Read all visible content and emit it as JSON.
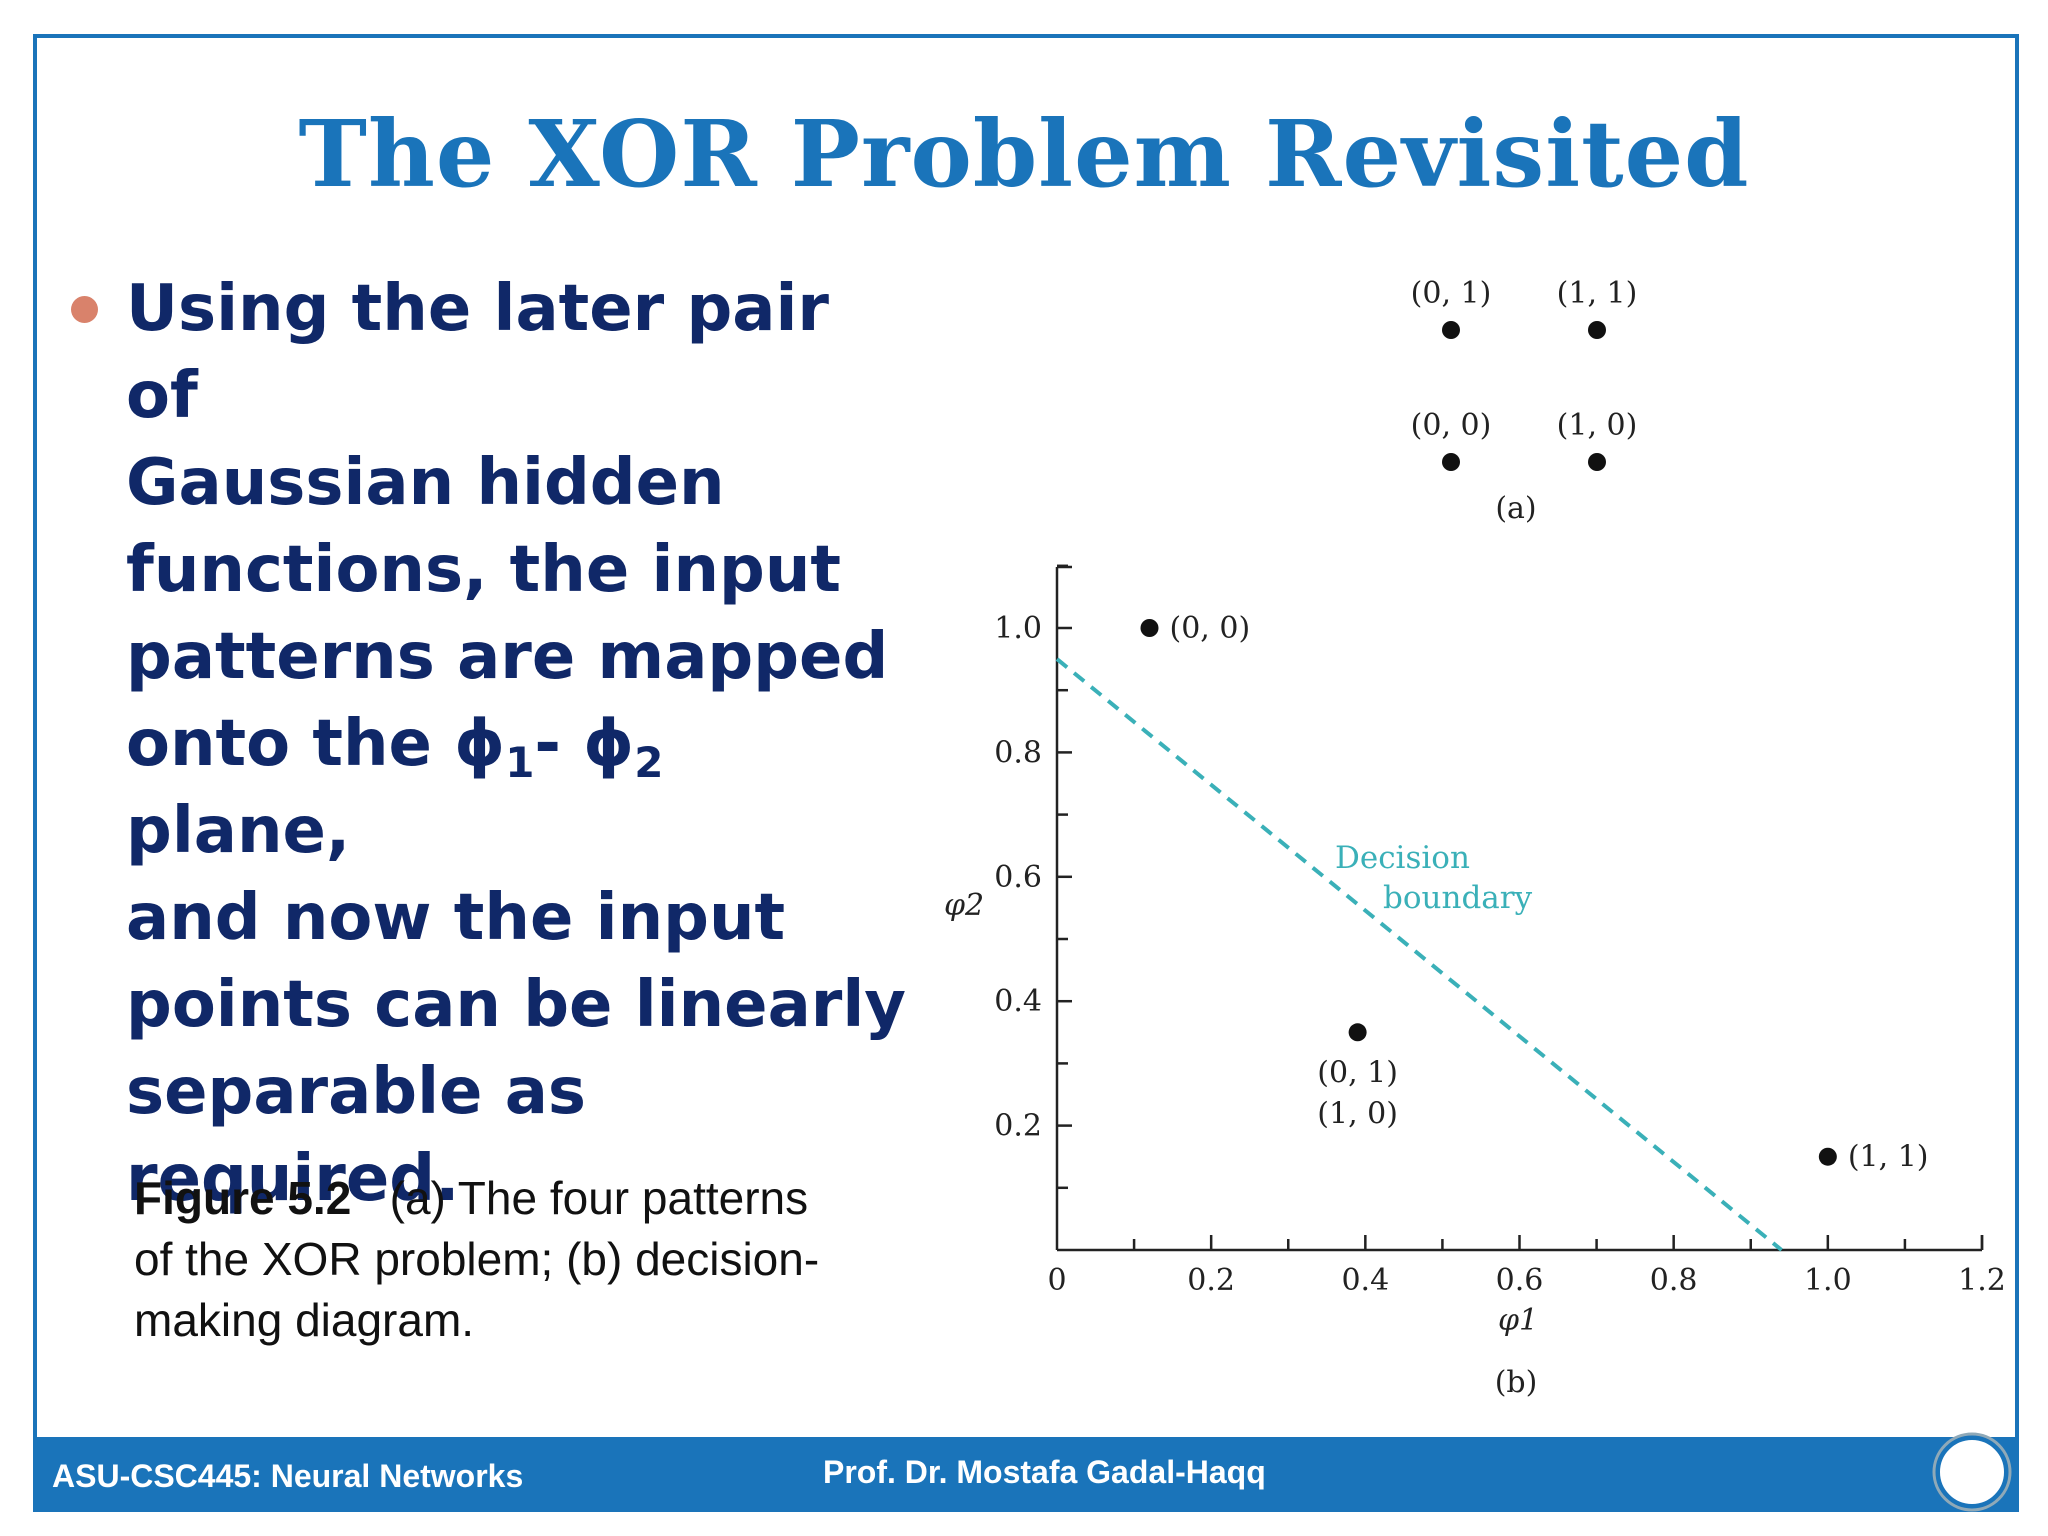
{
  "slide": {
    "title": "The XOR Problem Revisited",
    "bullet_lines": [
      "Using the later pair of",
      "Gaussian hidden",
      "functions, the input",
      "patterns are mapped"
    ],
    "phi_line": {
      "before": "onto the ",
      "phi1": "ϕ",
      "sub1": "1",
      "dash": "- ",
      "phi2": "ϕ",
      "sub2": "2",
      "after": " plane,"
    },
    "bullet_lines_end": [
      "and now the input",
      "points can be linearly",
      "separable as required."
    ],
    "caption": {
      "label": "Figure 5.2",
      "text_line1": "(a) The four patterns",
      "text_line2": "of the XOR problem; (b) decision-",
      "text_line3": "making diagram."
    },
    "footer": {
      "left": "ASU-CSC445: Neural Networks",
      "center": "Prof. Dr. Mostafa Gadal-Haqq"
    },
    "colors": {
      "accent": "#1a74ba",
      "bullet_text": "#102868",
      "bullet_dot": "#d9826b",
      "boundary": "#3ab0b8"
    }
  },
  "chart_data": [
    {
      "type": "scatter",
      "caption": "(a)",
      "points": [
        {
          "x": 0,
          "y": 1,
          "label": "(0, 1)"
        },
        {
          "x": 1,
          "y": 1,
          "label": "(1, 1)"
        },
        {
          "x": 0,
          "y": 0,
          "label": "(0, 0)"
        },
        {
          "x": 1,
          "y": 0,
          "label": "(1, 0)"
        }
      ]
    },
    {
      "type": "scatter",
      "caption": "(b)",
      "xlabel": "φ1",
      "ylabel": "φ2",
      "xlim": [
        0,
        1.2
      ],
      "ylim": [
        0,
        1.1
      ],
      "x_ticks": [
        0,
        0.2,
        0.4,
        0.6,
        0.8,
        1.0,
        1.2
      ],
      "x_tick_labels": [
        "0",
        "0.2",
        "0.4",
        "0.6",
        "0.8",
        "1.0",
        "1.2"
      ],
      "y_ticks": [
        0.2,
        0.4,
        0.6,
        0.8,
        1.0
      ],
      "y_tick_labels": [
        "0.2",
        "0.4",
        "0.6",
        "0.8",
        "1.0"
      ],
      "points": [
        {
          "x": 0.12,
          "y": 1.0,
          "labels": [
            "(0, 0)"
          ],
          "label_side": "right"
        },
        {
          "x": 0.39,
          "y": 0.35,
          "labels": [
            "(0, 1)",
            "(1, 0)"
          ],
          "label_side": "below"
        },
        {
          "x": 1.0,
          "y": 0.15,
          "labels": [
            "(1, 1)"
          ],
          "label_side": "right"
        }
      ],
      "boundary": {
        "x": [
          0,
          0.94
        ],
        "y": [
          0.95,
          0
        ],
        "style": "dashed"
      },
      "annotation": {
        "line1": "Decision",
        "line2": "boundary"
      }
    }
  ]
}
